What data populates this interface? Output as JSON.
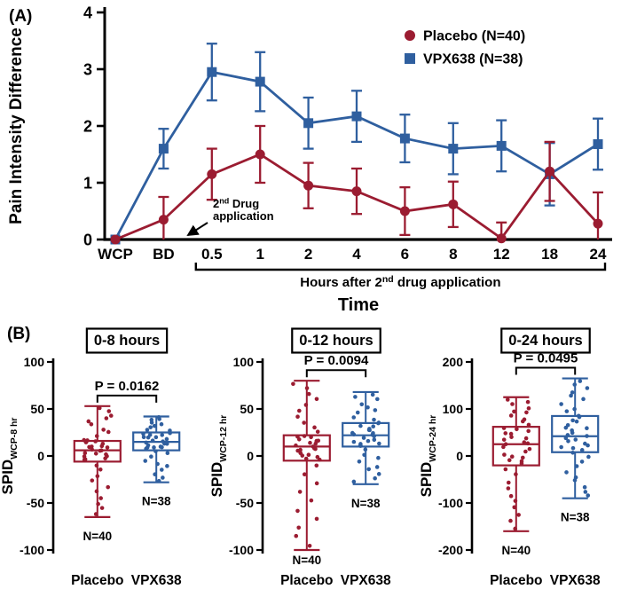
{
  "figure": {
    "panel_a_label": "(A)",
    "panel_b_label": "(B)"
  },
  "colors": {
    "placebo": "#9b1c31",
    "vpx638": "#2f5f9f",
    "axis": "#000000"
  },
  "chart_data": [
    {
      "id": "pain-intensity-time-course",
      "type": "line",
      "ylabel": "Pain Intensity Difference",
      "xlabel": "Time",
      "x_bracket_label": "Hours after 2nd drug application",
      "annotation_lines": [
        "2nd Drug",
        "application"
      ],
      "ylim": [
        0,
        4
      ],
      "yticks": [
        0,
        1,
        2,
        3,
        4
      ],
      "categories": [
        "WCP",
        "BD",
        "0.5",
        "1",
        "2",
        "4",
        "6",
        "8",
        "12",
        "18",
        "24"
      ],
      "legend_position": "top-right",
      "series": [
        {
          "name": "Placebo (N=40)",
          "marker": "circle",
          "color_key": "placebo",
          "values": [
            0,
            0.35,
            1.15,
            1.5,
            0.95,
            0.85,
            0.5,
            0.62,
            0.02,
            1.2,
            0.28
          ],
          "errors": [
            0,
            0.4,
            0.45,
            0.5,
            0.4,
            0.4,
            0.42,
            0.4,
            0.28,
            0.52,
            0.55
          ]
        },
        {
          "name": "VPX638 (N=38)",
          "marker": "square",
          "color_key": "vpx638",
          "values": [
            0,
            1.6,
            2.95,
            2.78,
            2.05,
            2.17,
            1.78,
            1.6,
            1.65,
            1.15,
            1.68
          ],
          "errors": [
            0,
            0.35,
            0.5,
            0.52,
            0.45,
            0.45,
            0.42,
            0.45,
            0.45,
            0.55,
            0.45
          ]
        }
      ]
    },
    {
      "id": "spid-0-8",
      "type": "box",
      "title": "0-8 hours",
      "ylabel": "SPID",
      "ylabel_sub": "WCP-8 hr",
      "p_label": "P = 0.0162",
      "ylim": [
        -100,
        100
      ],
      "yticks": [
        -100,
        -50,
        0,
        50,
        100
      ],
      "groups": [
        {
          "name": "Placebo",
          "color_key": "placebo",
          "n_label": "N=40",
          "n": 40,
          "whisker_low": -65,
          "q1": -6,
          "median": 6,
          "q3": 16,
          "whisker_high": 53
        },
        {
          "name": "VPX638",
          "color_key": "vpx638",
          "n_label": "N=38",
          "n": 38,
          "whisker_low": -28,
          "q1": 6,
          "median": 15,
          "q3": 25,
          "whisker_high": 42
        }
      ]
    },
    {
      "id": "spid-0-12",
      "type": "box",
      "title": "0-12 hours",
      "ylabel": "SPID",
      "ylabel_sub": "WCP-12 hr",
      "p_label": "P = 0.0094",
      "ylim": [
        -100,
        100
      ],
      "yticks": [
        -100,
        -50,
        0,
        50,
        100
      ],
      "groups": [
        {
          "name": "Placebo",
          "color_key": "placebo",
          "n_label": "N=40",
          "n": 40,
          "whisker_low": -100,
          "q1": -5,
          "median": 10,
          "q3": 22,
          "whisker_high": 80
        },
        {
          "name": "VPX638",
          "color_key": "vpx638",
          "n_label": "N=38",
          "n": 38,
          "whisker_low": -30,
          "q1": 10,
          "median": 22,
          "q3": 35,
          "whisker_high": 68
        }
      ]
    },
    {
      "id": "spid-0-24",
      "type": "box",
      "title": "0-24 hours",
      "ylabel": "SPID",
      "ylabel_sub": "WCP-24 hr",
      "p_label": "P = 0.0495",
      "ylim": [
        -200,
        200
      ],
      "yticks": [
        -200,
        -100,
        0,
        100,
        200
      ],
      "groups": [
        {
          "name": "Placebo",
          "color_key": "placebo",
          "n_label": "N=40",
          "n": 40,
          "whisker_low": -160,
          "q1": -20,
          "median": 25,
          "q3": 62,
          "whisker_high": 125
        },
        {
          "name": "VPX638",
          "color_key": "vpx638",
          "n_label": "N=38",
          "n": 38,
          "whisker_low": -90,
          "q1": 8,
          "median": 42,
          "q3": 85,
          "whisker_high": 165
        }
      ]
    }
  ]
}
